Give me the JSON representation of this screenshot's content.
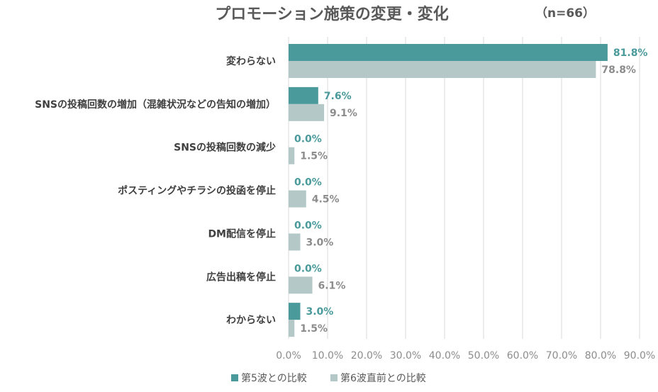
{
  "chart_data": {
    "type": "bar",
    "orientation": "horizontal",
    "title": "プロモーション施策の変更・変化",
    "sample_note": "（n=66）",
    "categories": [
      "変わらない",
      "SNSの投稿回数の増加（混雑状況などの告知の増加）",
      "SNSの投稿回数の減少",
      "ポスティングやチラシの投函を停止",
      "DM配信を停止",
      "広告出稿を停止",
      "わからない"
    ],
    "series": [
      {
        "name": "第5波との比較",
        "color": "#4a9a9c",
        "values": [
          81.8,
          7.6,
          0.0,
          0.0,
          0.0,
          0.0,
          3.0
        ],
        "labels": [
          "81.8%",
          "7.6%",
          "0.0%",
          "0.0%",
          "0.0%",
          "0.0%",
          "3.0%"
        ]
      },
      {
        "name": "第6波直前との比較",
        "color": "#b4c8c8",
        "values": [
          78.8,
          9.1,
          1.5,
          4.5,
          3.0,
          6.1,
          1.5
        ],
        "labels": [
          "78.8%",
          "9.1%",
          "1.5%",
          "4.5%",
          "3.0%",
          "6.1%",
          "1.5%"
        ]
      }
    ],
    "xlim": [
      0,
      90
    ],
    "xticks": [
      "0.0%",
      "10.0%",
      "20.0%",
      "30.0%",
      "40.0%",
      "50.0%",
      "60.0%",
      "70.0%",
      "80.0%",
      "90.0%"
    ],
    "grid": true,
    "legend_position": "bottom-left"
  }
}
